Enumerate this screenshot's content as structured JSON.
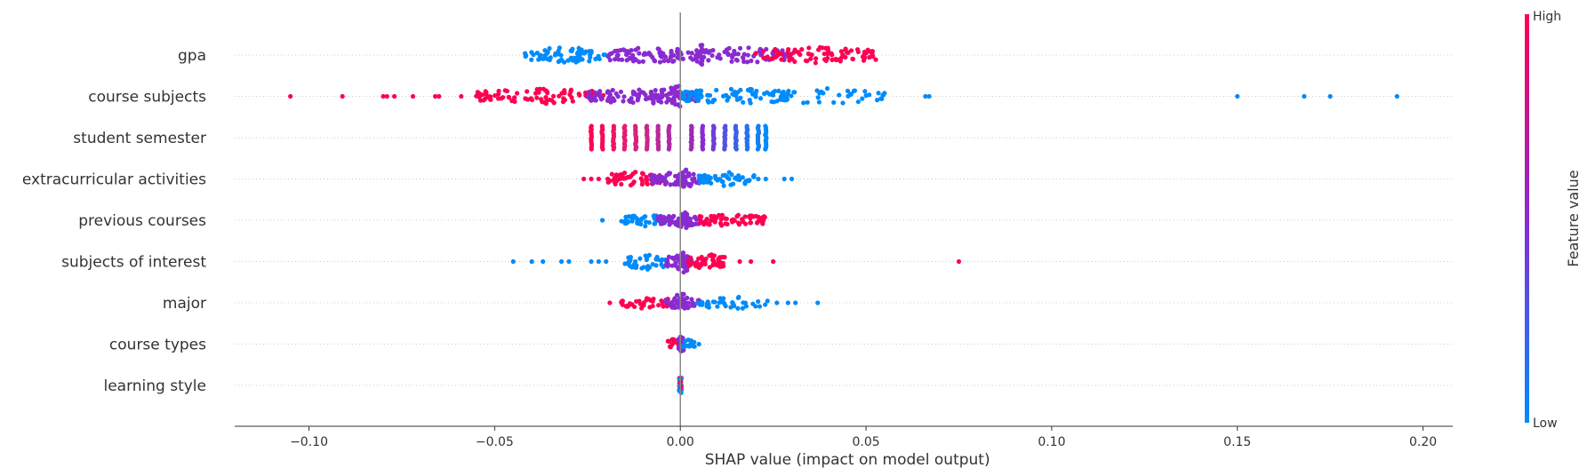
{
  "chart_data": {
    "type": "scatter",
    "subtype": "shap-beeswarm",
    "title": "",
    "xlabel": "SHAP value (impact on model output)",
    "ylabel": "",
    "xlim": [
      -0.12,
      0.208
    ],
    "xticks": [
      -0.1,
      -0.05,
      0.0,
      0.05,
      0.1,
      0.15,
      0.2
    ],
    "xtick_labels": [
      "−0.10",
      "−0.05",
      "0.00",
      "0.05",
      "0.10",
      "0.15",
      "0.20"
    ],
    "grid": "dotted horizontal row guides",
    "zero_line": true,
    "colors": {
      "low": "#008bfb",
      "mid": "#8a2bd0",
      "high": "#ff0051"
    },
    "colorbar": {
      "title": "Feature value",
      "high_label": "High",
      "low_label": "Low",
      "placement": "right"
    },
    "features": [
      {
        "name": "gpa",
        "spread": 0.9,
        "clusters": [
          {
            "x": -0.042,
            "x2": -0.02,
            "n": 70,
            "color": "low"
          },
          {
            "x": -0.02,
            "x2": 0.005,
            "n": 80,
            "color": "mid"
          },
          {
            "x": 0.005,
            "x2": 0.03,
            "n": 70,
            "color": "mid"
          },
          {
            "x": 0.02,
            "x2": 0.053,
            "n": 90,
            "color": "high"
          },
          {
            "x": 0.004,
            "x2": 0.006,
            "n": 20,
            "color": "mid",
            "dense": true
          }
        ],
        "outliers": []
      },
      {
        "name": "course subjects",
        "spread": 0.9,
        "clusters": [
          {
            "x": -0.055,
            "x2": -0.02,
            "n": 90,
            "color": "high"
          },
          {
            "x": -0.025,
            "x2": 0.005,
            "n": 110,
            "color": "mid"
          },
          {
            "x": -0.003,
            "x2": 0.0,
            "n": 25,
            "color": "mid",
            "dense": true
          },
          {
            "x": 0.0,
            "x2": 0.03,
            "n": 90,
            "color": "low"
          },
          {
            "x": 0.025,
            "x2": 0.055,
            "n": 40,
            "color": "low"
          }
        ],
        "outliers": [
          {
            "x": -0.105,
            "color": "high"
          },
          {
            "x": -0.091,
            "color": "high"
          },
          {
            "x": -0.08,
            "color": "high"
          },
          {
            "x": -0.079,
            "color": "high"
          },
          {
            "x": -0.077,
            "color": "high"
          },
          {
            "x": -0.072,
            "color": "high"
          },
          {
            "x": -0.066,
            "color": "high"
          },
          {
            "x": -0.065,
            "color": "high"
          },
          {
            "x": -0.059,
            "color": "high"
          },
          {
            "x": 0.066,
            "color": "low"
          },
          {
            "x": 0.067,
            "color": "low"
          },
          {
            "x": 0.15,
            "color": "low"
          },
          {
            "x": 0.168,
            "color": "low"
          },
          {
            "x": 0.175,
            "color": "low"
          },
          {
            "x": 0.193,
            "color": "low"
          }
        ]
      },
      {
        "name": "student semester",
        "spread": 0.9,
        "columns": [
          {
            "x": -0.024,
            "color": "#ff0051"
          },
          {
            "x": -0.021,
            "color": "#f70a5a"
          },
          {
            "x": -0.018,
            "color": "#ef1466"
          },
          {
            "x": -0.015,
            "color": "#e41c72"
          },
          {
            "x": -0.012,
            "color": "#d8227f"
          },
          {
            "x": -0.009,
            "color": "#c9268c"
          },
          {
            "x": -0.006,
            "color": "#bb289a"
          },
          {
            "x": -0.003,
            "color": "#ac2aa7"
          },
          {
            "x": 0.003,
            "color": "#9a2cb4"
          },
          {
            "x": 0.006,
            "color": "#8a2bd0"
          },
          {
            "x": 0.009,
            "color": "#6f3ed8"
          },
          {
            "x": 0.012,
            "color": "#5451e0"
          },
          {
            "x": 0.015,
            "color": "#3a62e8"
          },
          {
            "x": 0.018,
            "color": "#2472ef"
          },
          {
            "x": 0.021,
            "color": "#1380f5"
          },
          {
            "x": 0.023,
            "color": "#008bfb"
          }
        ]
      },
      {
        "name": "extracurricular activities",
        "spread": 0.8,
        "clusters": [
          {
            "x": -0.02,
            "x2": -0.005,
            "n": 55,
            "color": "high"
          },
          {
            "x": -0.008,
            "x2": 0.006,
            "n": 70,
            "color": "mid"
          },
          {
            "x": 0.0,
            "x2": 0.003,
            "n": 15,
            "color": "mid",
            "dense": true
          },
          {
            "x": 0.005,
            "x2": 0.02,
            "n": 55,
            "color": "low"
          }
        ],
        "outliers": [
          {
            "x": -0.026,
            "color": "high"
          },
          {
            "x": -0.024,
            "color": "high"
          },
          {
            "x": -0.022,
            "color": "high"
          },
          {
            "x": 0.021,
            "color": "low"
          },
          {
            "x": 0.023,
            "color": "low"
          },
          {
            "x": 0.028,
            "color": "low"
          },
          {
            "x": 0.03,
            "color": "low"
          }
        ]
      },
      {
        "name": "previous courses",
        "spread": 0.7,
        "clusters": [
          {
            "x": -0.016,
            "x2": -0.004,
            "n": 45,
            "color": "low"
          },
          {
            "x": -0.006,
            "x2": 0.006,
            "n": 60,
            "color": "mid"
          },
          {
            "x": 0.0,
            "x2": 0.002,
            "n": 10,
            "color": "mid",
            "dense": true
          },
          {
            "x": 0.004,
            "x2": 0.023,
            "n": 60,
            "color": "high"
          }
        ],
        "outliers": [
          {
            "x": -0.021,
            "color": "low"
          }
        ]
      },
      {
        "name": "subjects of interest",
        "spread": 0.9,
        "clusters": [
          {
            "x": -0.015,
            "x2": -0.003,
            "n": 40,
            "color": "low"
          },
          {
            "x": -0.004,
            "x2": 0.003,
            "n": 60,
            "color": "mid"
          },
          {
            "x": 0.0,
            "x2": 0.002,
            "n": 15,
            "color": "mid",
            "dense": true
          },
          {
            "x": 0.002,
            "x2": 0.012,
            "n": 50,
            "color": "high"
          }
        ],
        "outliers": [
          {
            "x": -0.045,
            "color": "low"
          },
          {
            "x": -0.04,
            "color": "low"
          },
          {
            "x": -0.037,
            "color": "low"
          },
          {
            "x": -0.032,
            "color": "low"
          },
          {
            "x": -0.03,
            "color": "low"
          },
          {
            "x": -0.024,
            "color": "low"
          },
          {
            "x": -0.022,
            "color": "low"
          },
          {
            "x": -0.02,
            "color": "low"
          },
          {
            "x": 0.016,
            "color": "high"
          },
          {
            "x": 0.019,
            "color": "high"
          },
          {
            "x": 0.025,
            "color": "high"
          },
          {
            "x": 0.075,
            "color": "high"
          }
        ]
      },
      {
        "name": "major",
        "spread": 0.7,
        "clusters": [
          {
            "x": -0.016,
            "x2": -0.003,
            "n": 40,
            "color": "high"
          },
          {
            "x": -0.004,
            "x2": 0.005,
            "n": 45,
            "color": "mid"
          },
          {
            "x": -0.001,
            "x2": 0.001,
            "n": 10,
            "color": "mid",
            "dense": true
          },
          {
            "x": 0.004,
            "x2": 0.024,
            "n": 40,
            "color": "low"
          }
        ],
        "outliers": [
          {
            "x": -0.019,
            "color": "high"
          },
          {
            "x": 0.026,
            "color": "low"
          },
          {
            "x": 0.029,
            "color": "low"
          },
          {
            "x": 0.031,
            "color": "low"
          },
          {
            "x": 0.037,
            "color": "low"
          }
        ]
      },
      {
        "name": "course types",
        "spread": 0.6,
        "clusters": [
          {
            "x": -0.004,
            "x2": -0.0005,
            "n": 12,
            "color": "high"
          },
          {
            "x": -0.001,
            "x2": 0.001,
            "n": 25,
            "color": "mid",
            "dense": true
          },
          {
            "x": 0.0005,
            "x2": 0.004,
            "n": 12,
            "color": "low"
          }
        ],
        "outliers": [
          {
            "x": 0.005,
            "color": "low"
          }
        ]
      },
      {
        "name": "learning style",
        "spread": 0.6,
        "clusters": [
          {
            "x": -0.0003,
            "x2": 0.0003,
            "n": 30,
            "color": "mixed",
            "dense": true
          }
        ],
        "outliers": []
      }
    ]
  }
}
